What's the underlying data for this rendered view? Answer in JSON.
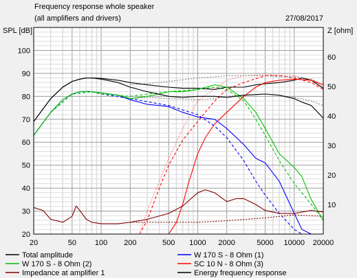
{
  "chart_data": {
    "type": "line",
    "title": "Frequency response whole speaker",
    "subtitle": "(all amplifiers and drivers)",
    "date": "27/08/2017",
    "ylabel_left": "SPL [dB]",
    "ylabel_right": "Z [ohm]",
    "x_scale": "log",
    "xlim": [
      20,
      20000
    ],
    "ylim_left": [
      20,
      110
    ],
    "ylim_right": [
      0,
      70
    ],
    "x_ticks": [
      20,
      50,
      100,
      200,
      500,
      1000,
      2000,
      5000,
      10000,
      20000
    ],
    "x_tick_labels": [
      "20",
      "50",
      "100",
      "200",
      "500",
      "1000",
      "2000",
      "5000",
      "10000",
      "20000"
    ],
    "y_left_ticks": [
      20,
      30,
      40,
      50,
      60,
      70,
      80,
      90,
      100
    ],
    "y_right_ticks": [
      10,
      20,
      30,
      40,
      50,
      60
    ],
    "grid": true,
    "legend_position": "bottom",
    "series": [
      {
        "name": "Total amplitude",
        "axis": "left",
        "color": "#000000",
        "style": "solid",
        "x": [
          20,
          30,
          40,
          50,
          60,
          70,
          80,
          100,
          150,
          200,
          300,
          500,
          700,
          1000,
          1500,
          2000,
          3000,
          4000,
          5000,
          7000,
          10000,
          12000,
          15000,
          20000
        ],
        "y": [
          69,
          79,
          84,
          86.5,
          87.5,
          88,
          88,
          87.8,
          87,
          86,
          85,
          84,
          83.5,
          83.5,
          83,
          84,
          84,
          85,
          85.5,
          86,
          87,
          88,
          87,
          83.5
        ]
      },
      {
        "name": "W 170 S - 8 Ohm (1)",
        "axis": "left",
        "color": "#0000ff",
        "style": "solid",
        "x": [
          20,
          30,
          40,
          50,
          60,
          70,
          80,
          100,
          150,
          200,
          300,
          400,
          500,
          700,
          1000,
          1500,
          2000,
          3000,
          4000,
          5000,
          7000,
          10000,
          12000,
          15000,
          20000
        ],
        "y": [
          63,
          73,
          78.5,
          81,
          82,
          82.2,
          82,
          81.5,
          80.5,
          78.5,
          76.5,
          76,
          75.5,
          73,
          71,
          70,
          66,
          59,
          53,
          51,
          43,
          29,
          22,
          20,
          20
        ]
      },
      {
        "name": "W 170 S - 8 Ohm (2)",
        "axis": "left",
        "color": "#00c000",
        "style": "solid",
        "x": [
          20,
          30,
          40,
          50,
          60,
          70,
          80,
          100,
          150,
          200,
          300,
          400,
          500,
          700,
          1000,
          1500,
          2000,
          3000,
          4000,
          5000,
          7000,
          10000,
          12000,
          15000,
          20000
        ],
        "y": [
          63,
          73,
          78.5,
          81,
          82,
          82.2,
          82,
          81.5,
          80.5,
          79,
          80,
          81,
          82,
          82,
          83,
          85,
          84,
          79,
          73,
          66,
          55,
          49,
          45,
          35,
          26
        ]
      },
      {
        "name": "SC 10 N - 8 Ohm (3)",
        "axis": "left",
        "color": "#ff0000",
        "style": "solid",
        "x": [
          500,
          600,
          700,
          800,
          1000,
          1200,
          1500,
          2000,
          3000,
          4000,
          5000,
          7000,
          10000,
          15000,
          20000
        ],
        "y": [
          20,
          25,
          33,
          42,
          55,
          62,
          68,
          73,
          80,
          84,
          86,
          87,
          87.5,
          87,
          85
        ]
      },
      {
        "name": "Impedance at amplifier 1",
        "axis": "right",
        "color": "#800000",
        "style": "solid",
        "x": [
          20,
          25,
          30,
          40,
          50,
          55,
          60,
          70,
          80,
          100,
          150,
          200,
          300,
          500,
          700,
          1000,
          1200,
          1500,
          2000,
          2500,
          3000,
          4000,
          5000,
          7000,
          10000,
          15000,
          20000
        ],
        "y": [
          9,
          8,
          5,
          4,
          6,
          9.5,
          8,
          5,
          4,
          3.5,
          3.5,
          4,
          5,
          7,
          9.5,
          14,
          15,
          14,
          11,
          12,
          12,
          10,
          8,
          7,
          7,
          8,
          7.5
        ]
      },
      {
        "name": "Energy frequency response",
        "axis": "left",
        "color": "#000000",
        "style": "solid",
        "x": [
          20,
          30,
          40,
          50,
          60,
          70,
          80,
          100,
          150,
          200,
          300,
          500,
          700,
          1000,
          1500,
          2000,
          3000,
          5000,
          7000,
          10000,
          12000,
          15000,
          20000
        ],
        "y": [
          69,
          79,
          84,
          86.5,
          87.5,
          88,
          88,
          87.5,
          86,
          84,
          82,
          80,
          79.5,
          80,
          80,
          79.5,
          80.5,
          81,
          80.5,
          79,
          77.5,
          76,
          70.5
        ]
      },
      {
        "name": "",
        "axis": "left",
        "color": "#0000ff",
        "style": "dashed",
        "x": [
          20,
          30,
          50,
          80,
          100,
          200,
          500,
          1000,
          1500,
          2000,
          3000,
          4000,
          5000,
          7000,
          10000,
          12000
        ],
        "y": [
          63,
          73,
          81,
          82,
          81,
          79,
          76,
          72,
          67,
          62,
          52,
          43,
          37,
          29,
          22,
          20
        ]
      },
      {
        "name": "",
        "axis": "left",
        "color": "#00c000",
        "style": "dashed",
        "x": [
          20,
          30,
          50,
          80,
          100,
          200,
          300,
          500,
          1000,
          1500,
          2000,
          3000,
          4000,
          5000,
          7000,
          10000,
          15000,
          20000
        ],
        "y": [
          63,
          73,
          81,
          82,
          81,
          80,
          81,
          82,
          83,
          84,
          83,
          78,
          70,
          63,
          52,
          42,
          33,
          26
        ]
      },
      {
        "name": "",
        "axis": "left",
        "color": "#ff0000",
        "style": "dashed",
        "x": [
          250,
          300,
          400,
          500,
          700,
          1000,
          1500,
          2000,
          3000,
          5000,
          7000,
          10000,
          15000,
          20000
        ],
        "y": [
          20,
          26,
          40,
          50,
          61,
          69,
          78,
          83,
          86,
          89,
          89,
          88,
          86,
          83
        ]
      },
      {
        "name": "",
        "axis": "left",
        "color": "#ff8080",
        "style": "dotted",
        "x": [
          250,
          300,
          500,
          700,
          1000,
          2000,
          3000,
          5000,
          10000,
          15000,
          20000
        ],
        "y": [
          20,
          30,
          53,
          66,
          78,
          87,
          89,
          89.5,
          89,
          87,
          84
        ]
      },
      {
        "name": "",
        "axis": "left",
        "color": "#808080",
        "style": "dotted",
        "x": [
          200,
          300,
          500,
          1000,
          1500,
          2000,
          3000,
          5000,
          7000,
          10000,
          15000,
          20000
        ],
        "y": [
          85,
          85.5,
          86.5,
          88,
          88.5,
          89,
          89,
          89,
          88.5,
          88.5,
          87.5,
          85
        ]
      },
      {
        "name": "",
        "axis": "left",
        "color": "#808080",
        "style": "dotted",
        "x": [
          200,
          300,
          500,
          1000,
          1500,
          2000,
          3000,
          5000,
          7000,
          10000,
          15000,
          20000
        ],
        "y": [
          79,
          79.5,
          79,
          78.5,
          79,
          80,
          80.5,
          81,
          80.5,
          79.5,
          78,
          76
        ]
      },
      {
        "name": "",
        "axis": "right",
        "color": "#800000",
        "style": "dotted",
        "x": [
          200,
          300,
          500,
          1000,
          2000,
          5000,
          10000,
          20000
        ],
        "y": [
          4,
          4,
          4,
          4,
          4.5,
          5.5,
          6.5,
          6
        ]
      }
    ],
    "legend": [
      {
        "label": "Total amplitude",
        "color": "#000000"
      },
      {
        "label": "W 170 S - 8 Ohm (1)",
        "color": "#0000ff"
      },
      {
        "label": "W 170 S - 8 Ohm (2)",
        "color": "#00c000"
      },
      {
        "label": "SC 10 N - 8 Ohm (3)",
        "color": "#ff0000"
      },
      {
        "label": "Impedance at amplifier 1",
        "color": "#800000"
      },
      {
        "label": "Energy frequency response",
        "color": "#000000"
      }
    ]
  }
}
